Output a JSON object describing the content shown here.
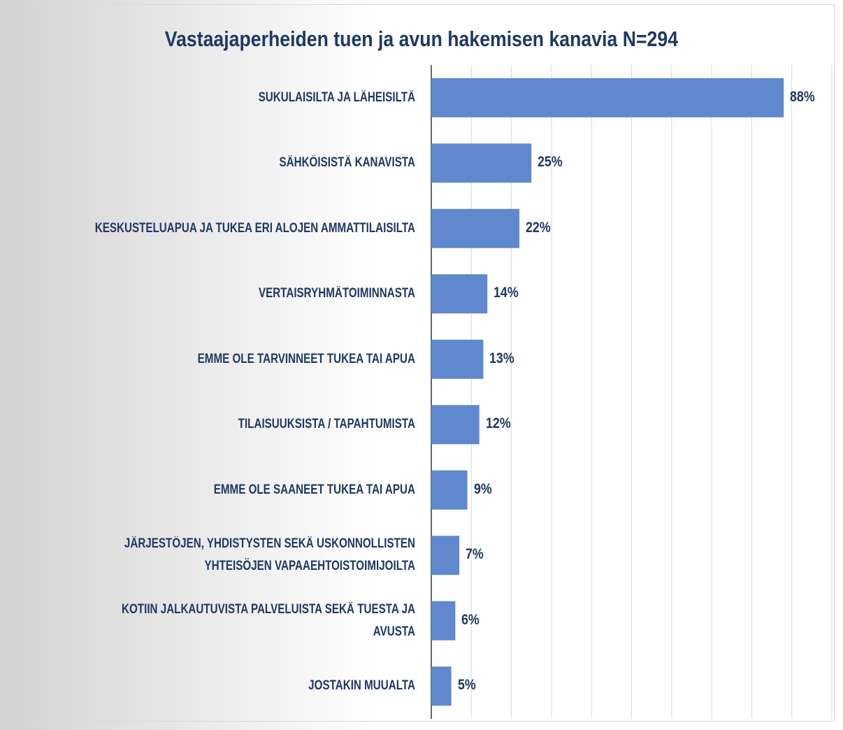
{
  "chart_data": {
    "type": "barh",
    "title": "Vastaajaperheiden tuen ja avun hakemisen kanavia N=294",
    "categories": [
      "SUKULAISILTA JA LÄHEISILTÄ",
      "SÄHKÖISISTÄ KANAVISTA",
      "KESKUSTELUAPUA JA TUKEA ERI ALOJEN AMMATTILAISILTA",
      "VERTAISRYHMÄTOIMINNASTA",
      "EMME OLE TARVINNEET TUKEA TAI APUA",
      "TILAISUUKSISTA / TAPAHTUMISTA",
      "EMME OLE SAANEET TUKEA TAI APUA",
      "JÄRJESTÖJEN, YHDISTYSTEN SEKÄ USKONNOLLISTEN\nYHTEISÖJEN VAPAAEHTOISTOIMIJOILTA",
      "KOTIIN JALKAUTUVISTA PALVELUISTA SEKÄ TUESTA JA\nAVUSTA",
      "JOSTAKIN MUUALTA"
    ],
    "values": [
      88,
      25,
      22,
      14,
      13,
      12,
      9,
      7,
      6,
      5
    ],
    "value_labels": [
      "88%",
      "25%",
      "22%",
      "14%",
      "13%",
      "12%",
      "9%",
      "7%",
      "6%",
      "5%"
    ],
    "color": "#6088cf",
    "xlim": [
      0,
      100
    ],
    "xticks": [
      0,
      10,
      20,
      30,
      40,
      50,
      60,
      70,
      80,
      90,
      100
    ],
    "grid": true
  }
}
